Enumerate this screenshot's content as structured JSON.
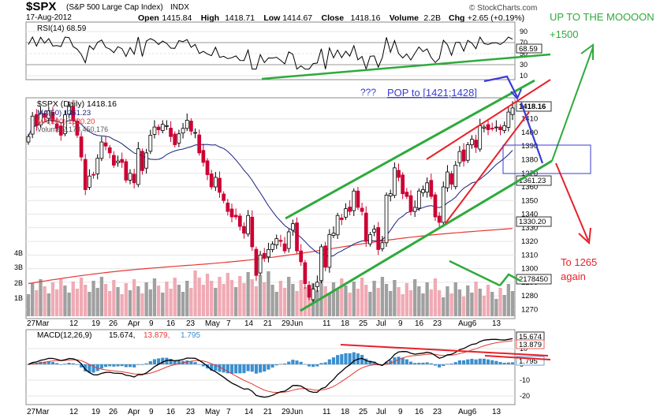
{
  "header": {
    "symbol": "$SPX",
    "name": "(S&P 500 Large Cap Index)",
    "exchange": "INDX",
    "date": "17-Aug-2012",
    "brand": "© StockCharts.com",
    "ohlc": [
      {
        "label": "Open",
        "value": "1415.84"
      },
      {
        "label": "High",
        "value": "1418.71"
      },
      {
        "label": "Low",
        "value": "1414.67"
      },
      {
        "label": "Close",
        "value": "1418.16"
      },
      {
        "label": "Volume",
        "value": "2.2B"
      },
      {
        "label": "Chg",
        "value": "+2.65 (+0.19%)"
      }
    ]
  },
  "colors": {
    "up": "#000000",
    "down": "#cc0033",
    "ma50": "#1a237e",
    "ma200": "#e53935",
    "vol_up": "#a0a0a0",
    "vol_down": "#f0aab4",
    "macd_hist": "#3a8fd0",
    "annot_green": "#2eaa3c",
    "annot_red": "#e8202a",
    "annot_blue": "#3b3bd6"
  },
  "rsi_panel": {
    "label": "RSI(14) 68.59",
    "ticks": [
      "90",
      "70",
      "50",
      "30",
      "10"
    ],
    "last_value": "68.59"
  },
  "price_panel": {
    "legend": [
      {
        "text": "$SPX (Daily) 1418.16",
        "color": "#000000"
      },
      {
        "text": "MA(50) 1361.23",
        "color": "#1a237e"
      },
      {
        "text": "MA(200) 1330.20",
        "color": "#e53935"
      },
      {
        "text": "Volume 2,178,450,176",
        "color": "#555555"
      }
    ],
    "volume_ticks": [
      "4B",
      "3B",
      "2B",
      "1B"
    ],
    "price_ticks": [
      "1410",
      "1400",
      "1390",
      "1380",
      "1370",
      "1360",
      "1350",
      "1340",
      "1330",
      "1320",
      "1310",
      "1300",
      "1290",
      "1280",
      "1270"
    ],
    "value_tags": [
      "1418.16",
      "1361.23",
      "1330.20",
      "2178450"
    ]
  },
  "macd_panel": {
    "label_prefix": "MACD(12,26,9)",
    "macd_value": "15.674,",
    "signal_value": "13.879,",
    "hist_value": "1.795",
    "ticks": [
      "10",
      "0",
      "-10",
      "-20"
    ],
    "value_tags": [
      "15.674",
      "13.879",
      "1.795"
    ]
  },
  "x_axis_labels": [
    "27Mar",
    "12",
    "19",
    "26",
    "Apr",
    "9",
    "16",
    "23",
    "May",
    "7",
    "14",
    "21",
    "29Jun",
    "11",
    "18",
    "25",
    "Jul",
    "9",
    "16",
    "23",
    "Aug6",
    "13"
  ],
  "annotations": {
    "up_text": "UP TO THE MOOOON",
    "up_target": "+1500",
    "pop_text": "POP to [1421;1428]",
    "question": "???",
    "down_text": "To 1265",
    "down_text2": "again"
  },
  "chart_data": {
    "type": "candlestick",
    "title": "$SPX (S&P 500 Large Cap Index) INDX",
    "x_range": [
      "2012-03-23",
      "2012-08-17"
    ],
    "price_range": [
      1265,
      1425
    ],
    "series": [
      {
        "name": "$SPX (Daily)",
        "last": 1418.16
      },
      {
        "name": "MA(50)",
        "last": 1361.23
      },
      {
        "name": "MA(200)",
        "last": 1330.2
      },
      {
        "name": "Volume",
        "last": 2178450176
      },
      {
        "name": "RSI(14)",
        "last": 68.59
      },
      {
        "name": "MACD(12,26,9)",
        "macd": 15.674,
        "signal": 13.879,
        "histogram": 1.795
      }
    ],
    "closes": [
      1397,
      1412,
      1405,
      1414,
      1411,
      1416,
      1408,
      1403,
      1398,
      1413,
      1419,
      1409,
      1398,
      1382,
      1358,
      1368,
      1369,
      1381,
      1393,
      1390,
      1385,
      1376,
      1379,
      1378,
      1365,
      1370,
      1363,
      1388,
      1372,
      1385,
      1398,
      1404,
      1402,
      1406,
      1405,
      1397,
      1391,
      1399,
      1403,
      1409,
      1401,
      1400,
      1385,
      1378,
      1369,
      1360,
      1367,
      1356,
      1350,
      1342,
      1338,
      1338,
      1331,
      1326,
      1339,
      1316,
      1295,
      1310,
      1308,
      1314,
      1318,
      1322,
      1320,
      1313,
      1327,
      1333,
      1313,
      1305,
      1289,
      1279,
      1285,
      1290,
      1316,
      1301,
      1325,
      1326,
      1339,
      1336,
      1344,
      1342,
      1357,
      1345,
      1342,
      1320,
      1325,
      1329,
      1314,
      1319,
      1354,
      1355,
      1374,
      1367,
      1355,
      1353,
      1342,
      1345,
      1357,
      1358,
      1363,
      1353,
      1338,
      1334,
      1360,
      1371,
      1362,
      1376,
      1386,
      1379,
      1391,
      1395,
      1389,
      1405,
      1404,
      1402,
      1403,
      1404,
      1402,
      1405,
      1415,
      1418
    ]
  }
}
